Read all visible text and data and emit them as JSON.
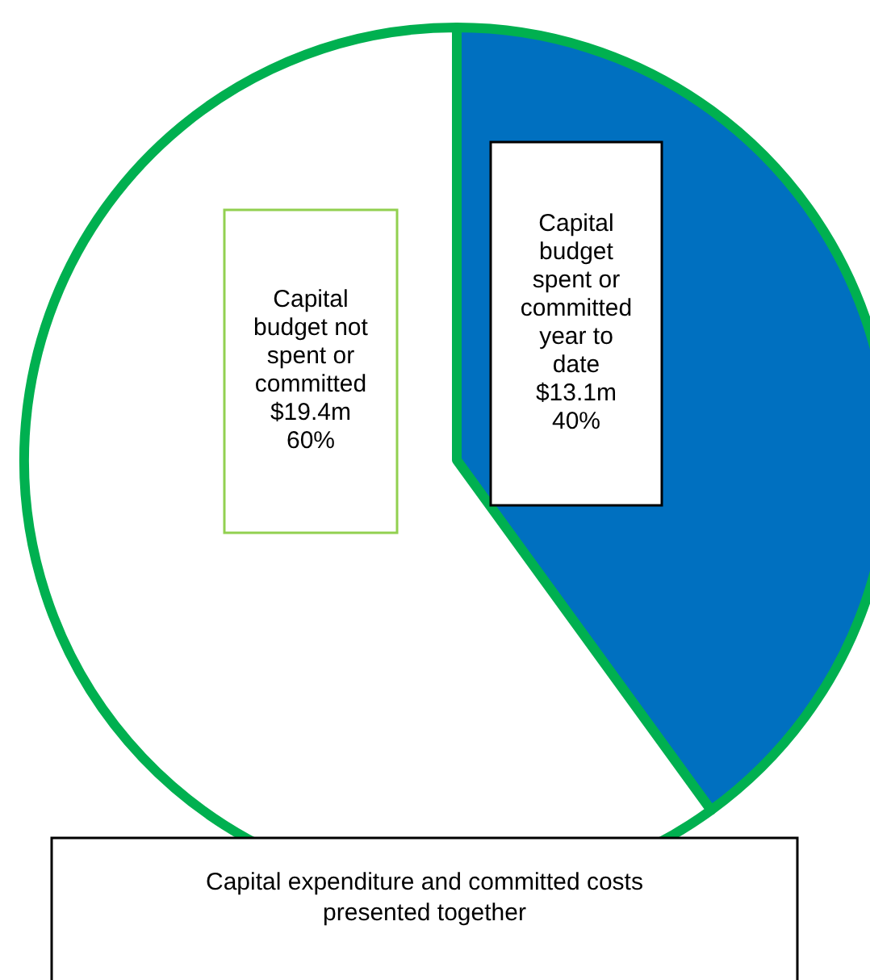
{
  "chart_data": {
    "type": "pie",
    "categories": [
      "Capital budget spent or committed year to date",
      "Capital budget not spent or committed"
    ],
    "values": [
      40,
      60
    ],
    "colors": [
      "#0070c0",
      "#ffffff"
    ],
    "value_labels": [
      "$13.1m\n40%",
      "$19.4m\n60%"
    ],
    "annotations": [
      "Capital expenditure and committed costs presented together"
    ]
  }
}
